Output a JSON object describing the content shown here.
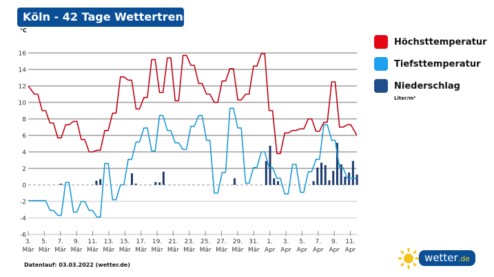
{
  "header": {
    "title": "Köln - 42 Tage Wettertrend",
    "unit": "°C"
  },
  "legend": {
    "items": [
      {
        "label": "Höchsttemperatur",
        "color": "#e30613"
      },
      {
        "label": "Tiefsttemperatur",
        "color": "#1ea0f0"
      },
      {
        "label": "Niederschlag",
        "color": "#1f4e8c"
      }
    ],
    "precip_unit": "Liter/m²"
  },
  "footer": {
    "datenlauf": "Datenlauf: 03.03.2022 (wetter.de)"
  },
  "logo": {
    "text": "wetter",
    "suffix": ".de",
    "icon": "sun-icon"
  },
  "chart_data": {
    "type": "line",
    "title": "Köln - 42 Tage Wettertrend",
    "ylabel": "°C",
    "ylim": [
      -6,
      16
    ],
    "yticks": [
      -6,
      -4,
      -2,
      0,
      2,
      4,
      6,
      8,
      10,
      12,
      14,
      16
    ],
    "grid": true,
    "legend_position": "right",
    "xtick_labels": [
      [
        "3.",
        "Mär"
      ],
      [
        "5.",
        "Mär"
      ],
      [
        "7.",
        "Mär"
      ],
      [
        "9.",
        "Mär"
      ],
      [
        "11.",
        "Mär"
      ],
      [
        "13.",
        "Mär"
      ],
      [
        "15.",
        "Mär"
      ],
      [
        "17.",
        "Mär"
      ],
      [
        "19.",
        "Mär"
      ],
      [
        "21.",
        "Mär"
      ],
      [
        "23.",
        "Mär"
      ],
      [
        "25.",
        "Mär"
      ],
      [
        "27.",
        "Mär"
      ],
      [
        "29.",
        "Mär"
      ],
      [
        "31.",
        "Mär"
      ],
      [
        "1.",
        "Apr"
      ],
      [
        "3.",
        "Apr"
      ],
      [
        "5.",
        "Apr"
      ],
      [
        "7.",
        "Apr"
      ],
      [
        "9.",
        "Apr"
      ],
      [
        "11.",
        "Apr"
      ]
    ],
    "series": [
      {
        "name": "Höchsttemperatur",
        "color": "#c00010",
        "values": [
          12,
          11,
          9,
          7.5,
          5.7,
          7.3,
          7.7,
          5.5,
          4.0,
          4.2,
          6.6,
          8.7,
          13.1,
          12.7,
          9.2,
          10.6,
          15.2,
          11.2,
          15.4,
          10.2,
          15.7,
          14.5,
          12.3,
          11,
          10,
          12.6,
          14.1,
          10.3,
          11,
          14.4,
          15.9,
          9,
          3.8,
          6.3,
          6.6,
          6.8,
          8.0,
          6.5,
          7.6,
          12.5,
          7.0,
          7.3,
          6.0
        ]
      },
      {
        "name": "Tiefsttemperatur",
        "color": "#1b9ad6",
        "values": [
          -1.9,
          -1.9,
          -1.9,
          -3.1,
          -3.7,
          0.3,
          -3.3,
          -2.0,
          -3.1,
          -3.9,
          2.6,
          -1.8,
          0,
          3.1,
          5.2,
          6.9,
          4.1,
          8.4,
          6.6,
          5.1,
          4.3,
          7.1,
          8.4,
          5.4,
          -1.0,
          1.5,
          9.3,
          6.9,
          0.2,
          2.1,
          4.0,
          2.1,
          0.8,
          -1.1,
          2.5,
          -0.9,
          1.6,
          3.1,
          7.3,
          5.4,
          2.1,
          0.8,
          0.8
        ]
      },
      {
        "name": "Niederschlag",
        "type": "bar",
        "color": "#1c3a6b",
        "unit": "Liter/m²",
        "values": [
          0,
          0,
          0,
          0,
          0,
          0,
          0,
          0,
          0.15,
          0,
          0,
          0,
          0,
          0,
          0,
          0,
          0,
          0.5,
          0.7,
          0,
          0,
          0,
          0,
          0,
          0,
          0,
          1.4,
          0.15,
          0,
          0,
          0,
          0,
          0.35,
          0.3,
          1.6,
          0,
          0,
          0,
          0,
          0,
          0,
          0,
          0,
          0,
          0,
          0,
          0,
          0,
          0,
          0,
          0,
          0,
          0.8,
          0,
          0,
          0,
          0,
          0,
          0,
          0,
          2.9,
          4.75,
          0.8,
          0.45,
          0,
          0,
          0,
          0,
          0,
          0,
          0,
          0,
          0.45,
          2.1,
          2.7,
          2.4,
          0.55,
          1.7,
          5.1,
          2.5,
          1.0,
          1.5,
          2.9,
          1.25
        ]
      }
    ]
  }
}
